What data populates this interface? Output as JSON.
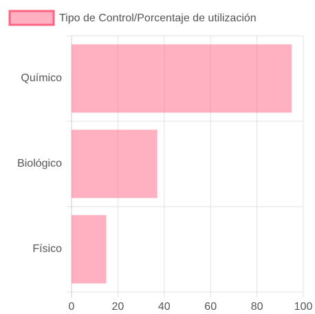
{
  "chart_data": {
    "type": "hbar",
    "categories": [
      "Químico",
      "Biológico",
      "Físico"
    ],
    "series": [
      {
        "name": "Tipo de Control/Porcentaje de utilización",
        "color": "#ff6384",
        "values": [
          95,
          37,
          15
        ]
      }
    ],
    "xlim": [
      0,
      100
    ],
    "xticks": [
      0,
      20,
      40,
      60,
      80,
      100
    ],
    "grid": true,
    "legend": "top"
  }
}
